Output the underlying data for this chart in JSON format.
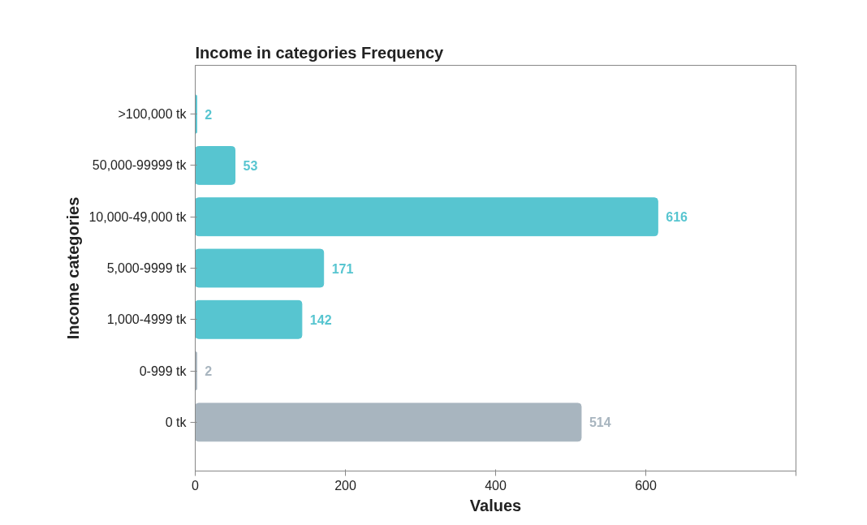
{
  "chart_data": {
    "type": "bar",
    "orientation": "horizontal",
    "title": "Income in categories Frequency",
    "xlabel": "Values",
    "ylabel": "Income categories",
    "categories": [
      ">100,000 tk",
      "50,000-99999 tk",
      "10,000-49,000 tk",
      "5,000-9999 tk",
      "1,000-4999 tk",
      "0-999 tk",
      "0 tk"
    ],
    "values": [
      2,
      53,
      616,
      171,
      142,
      2,
      514
    ],
    "colors": [
      "#57c5d0",
      "#57c5d0",
      "#57c5d0",
      "#57c5d0",
      "#57c5d0",
      "#a8b5bf",
      "#a8b5bf"
    ],
    "xlim": [
      0,
      800
    ],
    "xticks": [
      0,
      200,
      400,
      600,
      {
        "value": 800,
        "label": null
      }
    ],
    "data_labels": true,
    "grid": false
  }
}
